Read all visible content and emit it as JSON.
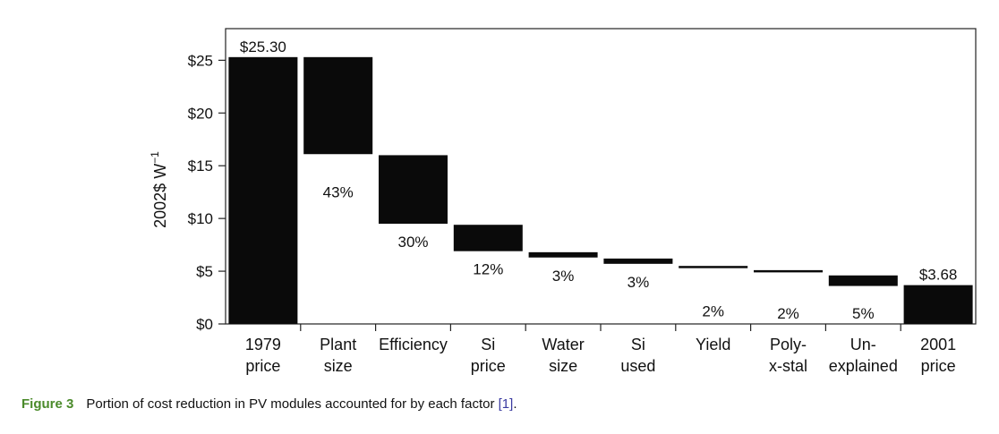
{
  "chart_data": {
    "type": "bar",
    "subtype": "waterfall",
    "ylabel": "2002$ W",
    "ylabel_superscript": "−1",
    "ylim": [
      0,
      28
    ],
    "yticks": [
      0,
      5,
      10,
      15,
      20,
      25
    ],
    "ytick_labels": [
      "$0",
      "$5",
      "$10",
      "$15",
      "$20",
      "$25"
    ],
    "grid": false,
    "categories": [
      {
        "line1": "1979",
        "line2": "price"
      },
      {
        "line1": "Plant",
        "line2": "size"
      },
      {
        "line1": "Efficiency",
        "line2": ""
      },
      {
        "line1": "Si",
        "line2": "price"
      },
      {
        "line1": "Water",
        "line2": "size"
      },
      {
        "line1": "Si",
        "line2": "used"
      },
      {
        "line1": "Yield",
        "line2": ""
      },
      {
        "line1": "Poly-",
        "line2": "x-stal"
      },
      {
        "line1": "Un-",
        "line2": "explained"
      },
      {
        "line1": "2001",
        "line2": "price"
      }
    ],
    "bars": [
      {
        "start": 0,
        "end": 25.3,
        "label": "$25.30",
        "label_pos": "top"
      },
      {
        "start": 16.1,
        "end": 25.3,
        "label": "43%",
        "label_pos": "below"
      },
      {
        "start": 9.5,
        "end": 16.0,
        "label": "30%",
        "label_pos": "below"
      },
      {
        "start": 6.9,
        "end": 9.4,
        "label": "12%",
        "label_pos": "below"
      },
      {
        "start": 6.3,
        "end": 6.8,
        "label": "3%",
        "label_pos": "below"
      },
      {
        "start": 5.7,
        "end": 6.2,
        "label": "3%",
        "label_pos": "below"
      },
      {
        "start": 5.3,
        "end": 5.5,
        "label": "2%",
        "label_pos": "below"
      },
      {
        "start": 4.9,
        "end": 5.1,
        "label": "2%",
        "label_pos": "below"
      },
      {
        "start": 3.6,
        "end": 4.6,
        "label": "5%",
        "label_pos": "below"
      },
      {
        "start": 0,
        "end": 3.68,
        "label": "$3.68",
        "label_pos": "top"
      }
    ],
    "colors": {
      "bar": "#0a0a0a",
      "axis": "#222222"
    }
  },
  "caption": {
    "figure": "Figure 3",
    "text": "Portion of cost reduction in PV modules accounted for by each factor ",
    "ref": "[1]",
    "end": "."
  }
}
